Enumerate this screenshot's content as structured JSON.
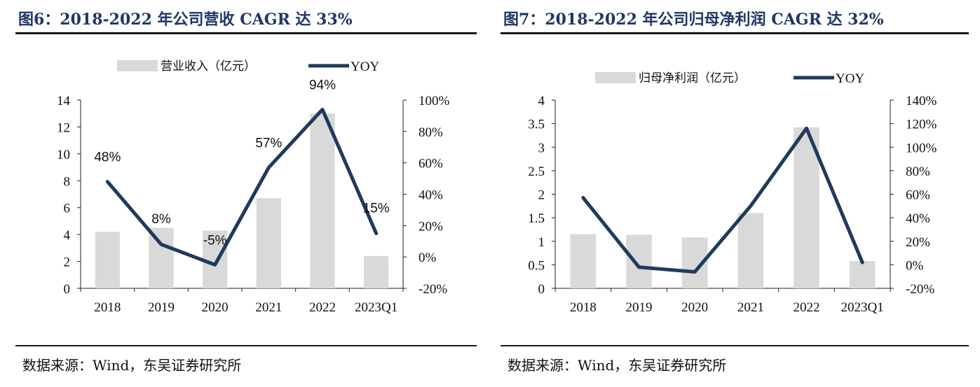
{
  "panels": [
    {
      "title": "图6：2018-2022 年公司营收 CAGR 达 33%",
      "source": "数据来源：Wind，东吴证券研究所",
      "legend": {
        "bar": "营业收入（亿元）",
        "line": "YOY"
      },
      "colors": {
        "bar": "#d9d9d9",
        "line": "#1f3a5c"
      },
      "chart_data": {
        "type": "bar+line",
        "categories": [
          "2018",
          "2019",
          "2020",
          "2021",
          "2022",
          "2023Q1"
        ],
        "series": [
          {
            "name": "营业收入（亿元）",
            "type": "bar",
            "axis": "left",
            "values": [
              4.2,
              4.5,
              4.3,
              6.7,
              13.0,
              2.4
            ]
          },
          {
            "name": "YOY",
            "type": "line",
            "axis": "right",
            "values": [
              48,
              8,
              -5,
              57,
              94,
              15
            ],
            "unit": "%"
          }
        ],
        "data_labels": [
          "48%",
          "8%",
          "-5%",
          "57%",
          "94%",
          "15%"
        ],
        "left_axis": {
          "min": 0,
          "max": 14,
          "step": 2,
          "ticks": [
            "0",
            "2",
            "4",
            "6",
            "8",
            "10",
            "12",
            "14"
          ]
        },
        "right_axis": {
          "min": -20,
          "max": 100,
          "step": 20,
          "ticks": [
            "-20%",
            "0%",
            "20%",
            "40%",
            "60%",
            "80%",
            "100%"
          ]
        },
        "legend_position": "top",
        "grid": false
      }
    },
    {
      "title": "图7：2018-2022 年公司归母净利润 CAGR 达 32%",
      "source": "数据来源：Wind，东吴证券研究所",
      "legend": {
        "bar": "归母净利润（亿元）",
        "line": "YOY"
      },
      "colors": {
        "bar": "#d9d9d9",
        "line": "#1f3a5c"
      },
      "chart_data": {
        "type": "bar+line",
        "categories": [
          "2018",
          "2019",
          "2020",
          "2021",
          "2022",
          "2023Q1"
        ],
        "series": [
          {
            "name": "归母净利润（亿元）",
            "type": "bar",
            "axis": "left",
            "values": [
              1.15,
              1.14,
              1.08,
              1.6,
              3.42,
              0.58
            ]
          },
          {
            "name": "YOY",
            "type": "line",
            "axis": "right",
            "values": [
              57,
              -2,
              -6,
              50,
              116,
              2
            ],
            "unit": "%"
          }
        ],
        "left_axis": {
          "min": 0,
          "max": 4,
          "step": 0.5,
          "ticks": [
            "0",
            "0.5",
            "1",
            "1.5",
            "2",
            "2.5",
            "3",
            "3.5",
            "4"
          ]
        },
        "right_axis": {
          "min": -20,
          "max": 140,
          "step": 20,
          "ticks": [
            "-20%",
            "0%",
            "20%",
            "40%",
            "60%",
            "80%",
            "100%",
            "120%",
            "140%"
          ]
        },
        "legend_position": "top",
        "grid": false
      }
    }
  ]
}
